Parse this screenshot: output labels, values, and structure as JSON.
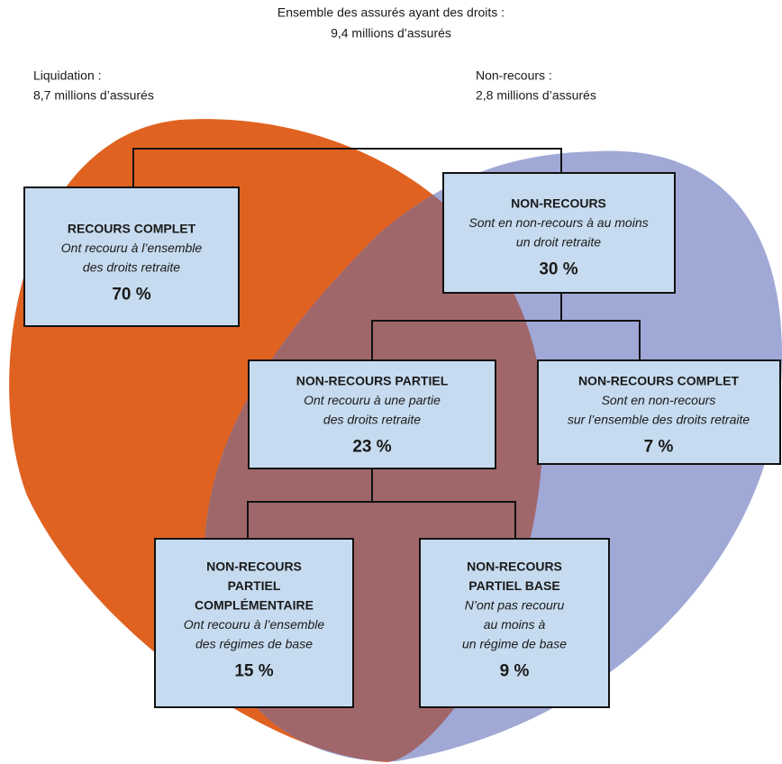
{
  "header": {
    "lines": [
      "Ensemble des assurés ayant des droits :",
      "9,4 millions d’assurés"
    ]
  },
  "left_label": {
    "lines": [
      "Liquidation :",
      "8,7 millions d’assurés"
    ]
  },
  "right_label": {
    "lines": [
      "Non-recours :",
      "2,8 millions d’assurés"
    ]
  },
  "nodes": [
    {
      "title": [
        "RECOURS COMPLET"
      ],
      "description": [
        "Ont recouru à l’ensemble",
        "des droits retraite"
      ],
      "share": "70 %"
    },
    {
      "title": [
        "NON-RECOURS"
      ],
      "description": [
        "Sont en non-recours à au moins",
        "un droit retraite"
      ],
      "share": "30 %"
    },
    {
      "title": [
        "NON-RECOURS PARTIEL"
      ],
      "description": [
        "Ont recouru à une partie",
        "des droits retraite"
      ],
      "share": "23 %"
    },
    {
      "title": [
        "NON-RECOURS COMPLET"
      ],
      "description": [
        "Sont en non-recours",
        "sur l’ensemble des droits retraite"
      ],
      "share": "7 %"
    },
    {
      "title": [
        "NON-RECOURS",
        "PARTIEL",
        "COMPLÉMENTAIRE"
      ],
      "description": [
        "Ont recouru à l’ensemble",
        "des régimes de base"
      ],
      "share": "15 %"
    },
    {
      "title": [
        "NON-RECOURS",
        "PARTIEL BASE"
      ],
      "description": [
        "N’ont pas recouru",
        "au moins à",
        "un régime de base"
      ],
      "share": "9 %"
    }
  ]
}
